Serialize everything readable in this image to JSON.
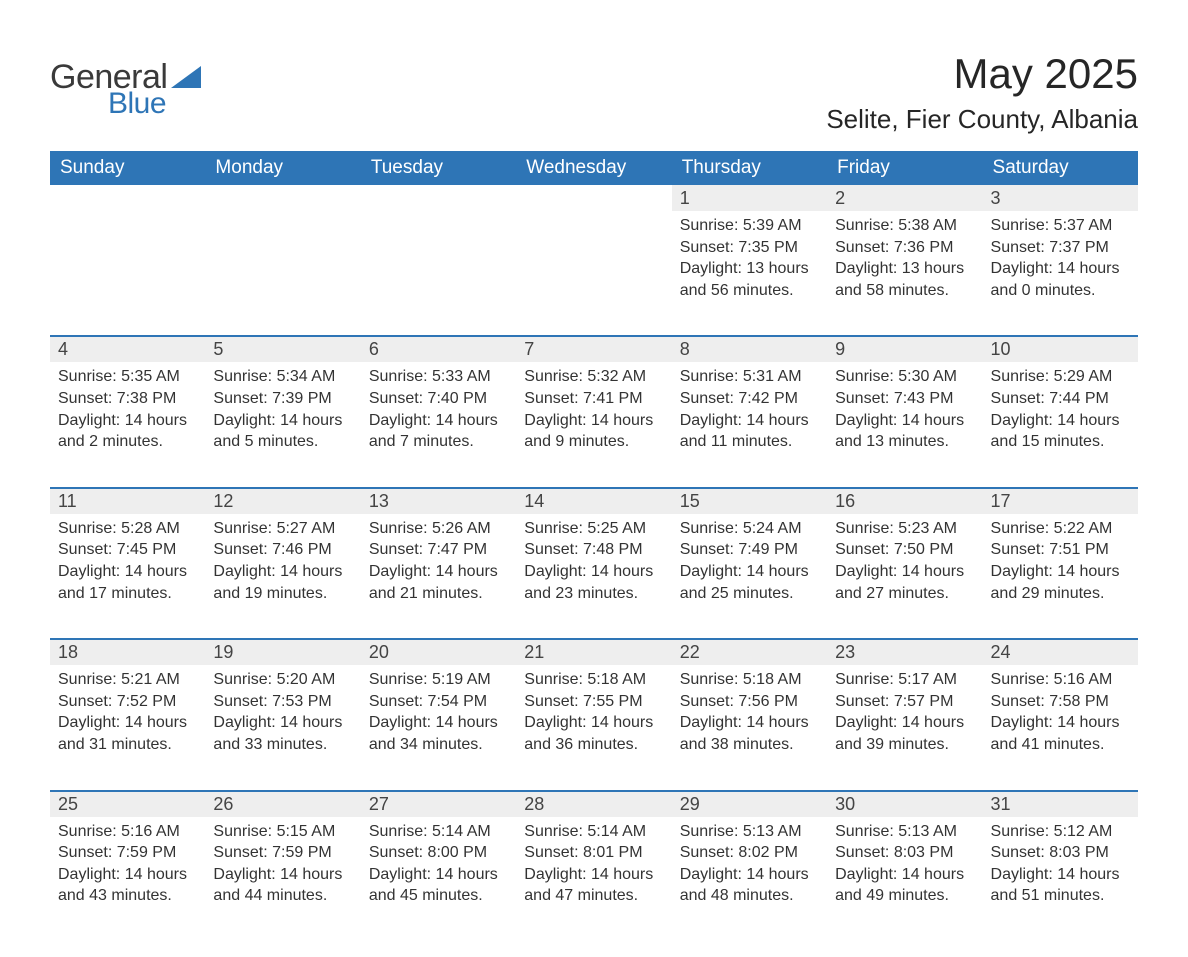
{
  "logo": {
    "general": "General",
    "blue": "Blue",
    "icon_color": "#2e75b6"
  },
  "title": "May 2025",
  "location": "Selite, Fier County, Albania",
  "header_bg": "#2e75b6",
  "daynum_bg": "#eeeeee",
  "border_color": "#2e75b6",
  "text_color": "#333333",
  "days_of_week": [
    "Sunday",
    "Monday",
    "Tuesday",
    "Wednesday",
    "Thursday",
    "Friday",
    "Saturday"
  ],
  "weeks": [
    {
      "nums": [
        "",
        "",
        "",
        "",
        "1",
        "2",
        "3"
      ],
      "cells": [
        null,
        null,
        null,
        null,
        {
          "sunrise": "5:39 AM",
          "sunset": "7:35 PM",
          "daylight": "13 hours and 56 minutes."
        },
        {
          "sunrise": "5:38 AM",
          "sunset": "7:36 PM",
          "daylight": "13 hours and 58 minutes."
        },
        {
          "sunrise": "5:37 AM",
          "sunset": "7:37 PM",
          "daylight": "14 hours and 0 minutes."
        }
      ]
    },
    {
      "nums": [
        "4",
        "5",
        "6",
        "7",
        "8",
        "9",
        "10"
      ],
      "cells": [
        {
          "sunrise": "5:35 AM",
          "sunset": "7:38 PM",
          "daylight": "14 hours and 2 minutes."
        },
        {
          "sunrise": "5:34 AM",
          "sunset": "7:39 PM",
          "daylight": "14 hours and 5 minutes."
        },
        {
          "sunrise": "5:33 AM",
          "sunset": "7:40 PM",
          "daylight": "14 hours and 7 minutes."
        },
        {
          "sunrise": "5:32 AM",
          "sunset": "7:41 PM",
          "daylight": "14 hours and 9 minutes."
        },
        {
          "sunrise": "5:31 AM",
          "sunset": "7:42 PM",
          "daylight": "14 hours and 11 minutes."
        },
        {
          "sunrise": "5:30 AM",
          "sunset": "7:43 PM",
          "daylight": "14 hours and 13 minutes."
        },
        {
          "sunrise": "5:29 AM",
          "sunset": "7:44 PM",
          "daylight": "14 hours and 15 minutes."
        }
      ]
    },
    {
      "nums": [
        "11",
        "12",
        "13",
        "14",
        "15",
        "16",
        "17"
      ],
      "cells": [
        {
          "sunrise": "5:28 AM",
          "sunset": "7:45 PM",
          "daylight": "14 hours and 17 minutes."
        },
        {
          "sunrise": "5:27 AM",
          "sunset": "7:46 PM",
          "daylight": "14 hours and 19 minutes."
        },
        {
          "sunrise": "5:26 AM",
          "sunset": "7:47 PM",
          "daylight": "14 hours and 21 minutes."
        },
        {
          "sunrise": "5:25 AM",
          "sunset": "7:48 PM",
          "daylight": "14 hours and 23 minutes."
        },
        {
          "sunrise": "5:24 AM",
          "sunset": "7:49 PM",
          "daylight": "14 hours and 25 minutes."
        },
        {
          "sunrise": "5:23 AM",
          "sunset": "7:50 PM",
          "daylight": "14 hours and 27 minutes."
        },
        {
          "sunrise": "5:22 AM",
          "sunset": "7:51 PM",
          "daylight": "14 hours and 29 minutes."
        }
      ]
    },
    {
      "nums": [
        "18",
        "19",
        "20",
        "21",
        "22",
        "23",
        "24"
      ],
      "cells": [
        {
          "sunrise": "5:21 AM",
          "sunset": "7:52 PM",
          "daylight": "14 hours and 31 minutes."
        },
        {
          "sunrise": "5:20 AM",
          "sunset": "7:53 PM",
          "daylight": "14 hours and 33 minutes."
        },
        {
          "sunrise": "5:19 AM",
          "sunset": "7:54 PM",
          "daylight": "14 hours and 34 minutes."
        },
        {
          "sunrise": "5:18 AM",
          "sunset": "7:55 PM",
          "daylight": "14 hours and 36 minutes."
        },
        {
          "sunrise": "5:18 AM",
          "sunset": "7:56 PM",
          "daylight": "14 hours and 38 minutes."
        },
        {
          "sunrise": "5:17 AM",
          "sunset": "7:57 PM",
          "daylight": "14 hours and 39 minutes."
        },
        {
          "sunrise": "5:16 AM",
          "sunset": "7:58 PM",
          "daylight": "14 hours and 41 minutes."
        }
      ]
    },
    {
      "nums": [
        "25",
        "26",
        "27",
        "28",
        "29",
        "30",
        "31"
      ],
      "cells": [
        {
          "sunrise": "5:16 AM",
          "sunset": "7:59 PM",
          "daylight": "14 hours and 43 minutes."
        },
        {
          "sunrise": "5:15 AM",
          "sunset": "7:59 PM",
          "daylight": "14 hours and 44 minutes."
        },
        {
          "sunrise": "5:14 AM",
          "sunset": "8:00 PM",
          "daylight": "14 hours and 45 minutes."
        },
        {
          "sunrise": "5:14 AM",
          "sunset": "8:01 PM",
          "daylight": "14 hours and 47 minutes."
        },
        {
          "sunrise": "5:13 AM",
          "sunset": "8:02 PM",
          "daylight": "14 hours and 48 minutes."
        },
        {
          "sunrise": "5:13 AM",
          "sunset": "8:03 PM",
          "daylight": "14 hours and 49 minutes."
        },
        {
          "sunrise": "5:12 AM",
          "sunset": "8:03 PM",
          "daylight": "14 hours and 51 minutes."
        }
      ]
    }
  ],
  "labels": {
    "sunrise": "Sunrise: ",
    "sunset": "Sunset: ",
    "daylight": "Daylight: "
  }
}
